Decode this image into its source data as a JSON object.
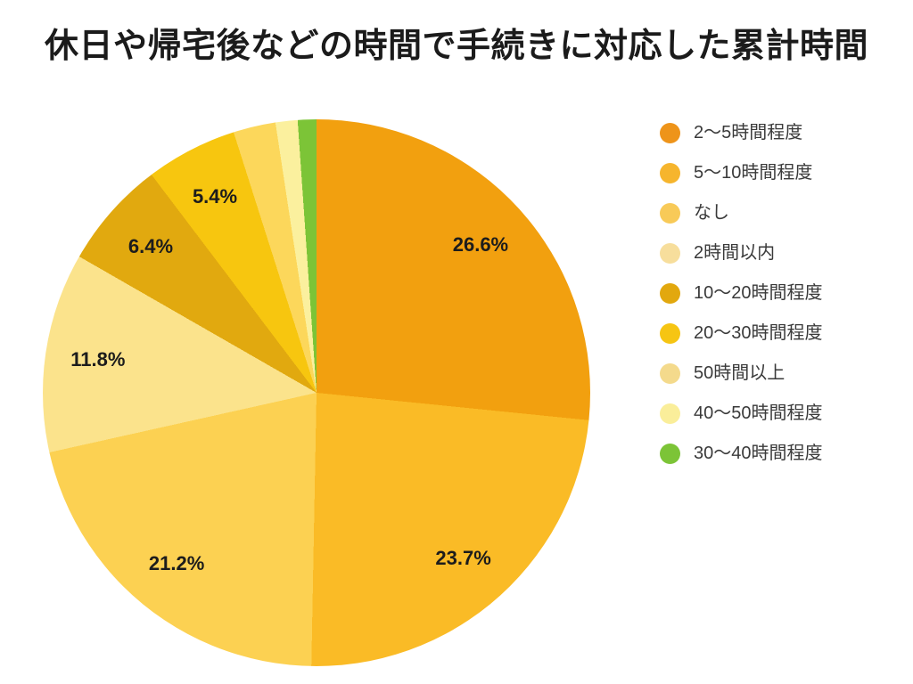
{
  "title": "休日や帰宅後などの時間で手続きに対応した累計時間",
  "page": {
    "background": "#ffffff",
    "title_color": "#1b1b1b",
    "label_color": "#1c1c1c",
    "legend_text_color": "#3a3a3a"
  },
  "chart_data": {
    "type": "pie",
    "title": "休日や帰宅後などの時間で手続きに対応した累計時間",
    "direction": "clockwise",
    "start_angle_deg": 0,
    "legend_position": "right",
    "unlabeled_slice_values_estimated": true,
    "slices": [
      {
        "name": "2〜5時間程度",
        "value": 26.6,
        "label": "26.6%",
        "color": "#F2A00F",
        "legend_color": "#EE941A"
      },
      {
        "name": "5〜10時間程度",
        "value": 23.7,
        "label": "23.7%",
        "color": "#FABB26",
        "legend_color": "#F6B52D"
      },
      {
        "name": "なし",
        "value": 21.2,
        "label": "21.2%",
        "color": "#FCD152",
        "legend_color": "#F8CA58"
      },
      {
        "name": "2時間以内",
        "value": 11.8,
        "label": "11.8%",
        "color": "#FBE38C",
        "legend_color": "#F7DE9C"
      },
      {
        "name": "10〜20時間程度",
        "value": 6.4,
        "label": "6.4%",
        "color": "#E1A90F",
        "legend_color": "#E2A80E"
      },
      {
        "name": "20〜30時間程度",
        "value": 5.4,
        "label": "5.4%",
        "color": "#F7C60F",
        "legend_color": "#F6C513"
      },
      {
        "name": "50時間以上",
        "value": 2.5,
        "label": "",
        "color": "#FCD75B",
        "legend_color": "#F4DA8C"
      },
      {
        "name": "40〜50時間程度",
        "value": 1.3,
        "label": "",
        "color": "#FBF09E",
        "legend_color": "#FAEE9A"
      },
      {
        "name": "30〜40時間程度",
        "value": 1.1,
        "label": "",
        "color": "#7CC437",
        "legend_color": "#7CC437"
      }
    ]
  }
}
